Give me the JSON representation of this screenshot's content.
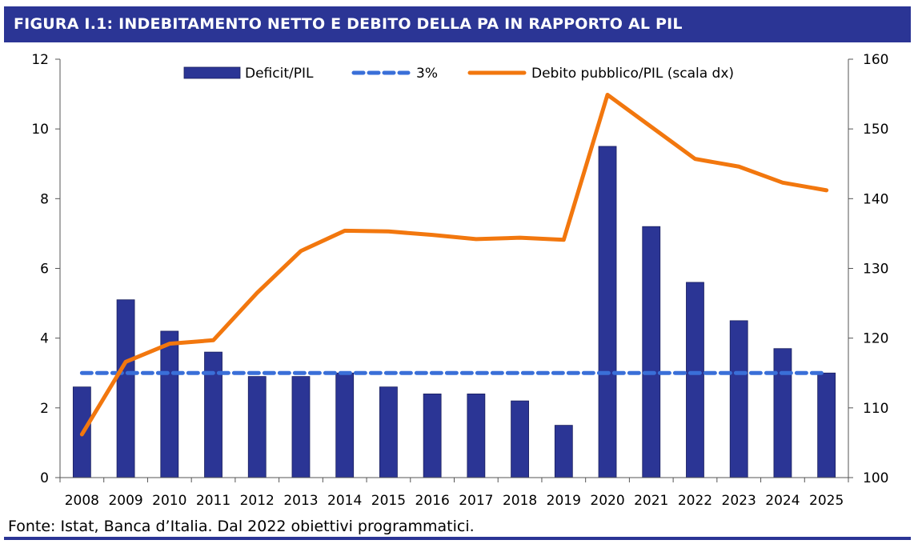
{
  "header": {
    "title": "FIGURA I.1: INDEBITAMENTO NETTO E DEBITO DELLA PA IN RAPPORTO AL PIL"
  },
  "footer": {
    "source": "Fonte: Istat, Banca d’Italia. Dal 2022 obiettivi programmatici."
  },
  "colors": {
    "bar": "#2b3595",
    "threshold": "#3a6fd8",
    "debt": "#f2770e",
    "title_bg": "#2b3595"
  },
  "chart_data": {
    "type": "bar",
    "categories": [
      "2008",
      "2009",
      "2010",
      "2011",
      "2012",
      "2013",
      "2014",
      "2015",
      "2016",
      "2017",
      "2018",
      "2019",
      "2020",
      "2021",
      "2022",
      "2023",
      "2024",
      "2025"
    ],
    "left_axis": {
      "ylim": [
        0,
        12
      ],
      "ticks": [
        "0",
        "2",
        "4",
        "6",
        "8",
        "10",
        "12"
      ]
    },
    "right_axis": {
      "ylim": [
        100,
        160
      ],
      "ticks": [
        "100",
        "110",
        "120",
        "130",
        "140",
        "150",
        "160"
      ]
    },
    "legend_position": "top",
    "series": [
      {
        "name": "Deficit/PIL",
        "type": "bar",
        "axis": "left",
        "values": [
          2.6,
          5.1,
          4.2,
          3.6,
          2.9,
          2.9,
          3.0,
          2.6,
          2.4,
          2.4,
          2.2,
          1.5,
          9.5,
          7.2,
          5.6,
          4.5,
          3.7,
          3.0
        ]
      },
      {
        "name": "3%",
        "type": "line",
        "style": "dashed",
        "axis": "left",
        "values": [
          3,
          3,
          3,
          3,
          3,
          3,
          3,
          3,
          3,
          3,
          3,
          3,
          3,
          3,
          3,
          3,
          3,
          3
        ]
      },
      {
        "name": "Debito pubblico/PIL (scala dx)",
        "type": "line",
        "axis": "right",
        "values": [
          106.2,
          116.6,
          119.2,
          119.7,
          126.5,
          132.5,
          135.4,
          135.3,
          134.8,
          134.2,
          134.4,
          134.1,
          154.9,
          150.3,
          145.7,
          144.6,
          142.3,
          141.2
        ]
      }
    ]
  }
}
